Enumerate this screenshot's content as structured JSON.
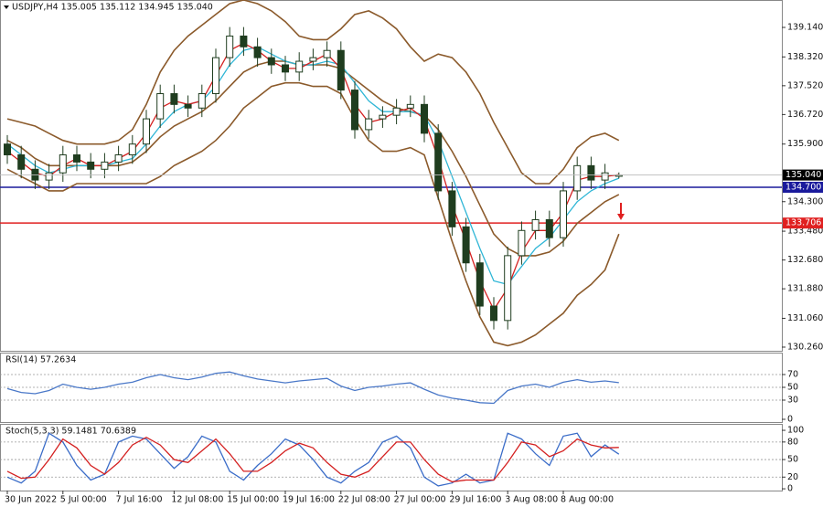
{
  "chart_data": [
    {
      "type": "candlestick",
      "title": "USDJPY,H4  135.005 135.112 134.945 135.040",
      "categories": [
        "30 Jun 2022",
        null,
        null,
        null,
        "5 Jul 00:00",
        null,
        null,
        null,
        "7 Jul 16:00",
        null,
        null,
        null,
        "12 Jul 08:00",
        null,
        null,
        null,
        "15 Jul 00:00",
        null,
        null,
        null,
        "19 Jul 16:00",
        null,
        null,
        null,
        "22 Jul 08:00",
        null,
        null,
        null,
        "27 Jul 00:00",
        null,
        null,
        null,
        "29 Jul 16:00",
        null,
        null,
        null,
        "3 Aug 08:00",
        null,
        null,
        null,
        "8 Aug 00:00",
        null,
        null,
        null,
        null
      ],
      "open": [
        135.9,
        135.6,
        135.2,
        134.9,
        135.1,
        135.6,
        135.4,
        135.2,
        135.4,
        135.6,
        135.9,
        136.6,
        137.3,
        137.0,
        136.9,
        137.3,
        138.3,
        138.9,
        138.6,
        138.3,
        138.1,
        137.9,
        138.2,
        138.3,
        138.5,
        137.4,
        136.3,
        136.6,
        136.7,
        136.9,
        137.0,
        136.2,
        134.6,
        133.6,
        132.6,
        131.4,
        131.0,
        132.8,
        133.5,
        133.8,
        133.3,
        134.6,
        135.3,
        134.9,
        135.005
      ],
      "high": [
        136.15,
        135.85,
        135.45,
        135.35,
        135.85,
        135.85,
        135.65,
        135.65,
        135.85,
        136.15,
        136.85,
        137.55,
        137.55,
        137.25,
        137.55,
        138.55,
        139.15,
        139.15,
        138.85,
        138.55,
        138.35,
        138.45,
        138.55,
        138.75,
        138.75,
        137.65,
        136.85,
        136.95,
        137.15,
        137.25,
        137.25,
        136.45,
        134.85,
        133.85,
        132.85,
        131.65,
        133.05,
        133.75,
        134.05,
        134.05,
        134.85,
        135.55,
        135.55,
        135.35,
        135.112
      ],
      "low": [
        135.35,
        134.95,
        134.65,
        134.65,
        134.85,
        135.15,
        134.95,
        134.95,
        135.15,
        135.35,
        135.65,
        136.35,
        136.75,
        136.65,
        136.65,
        137.05,
        138.05,
        138.35,
        138.05,
        137.85,
        137.65,
        137.65,
        137.95,
        138.05,
        137.15,
        136.05,
        136.05,
        136.35,
        136.45,
        136.65,
        135.95,
        134.35,
        133.35,
        132.35,
        131.15,
        130.75,
        130.75,
        132.55,
        133.25,
        133.05,
        133.05,
        134.35,
        134.65,
        134.65,
        134.945
      ],
      "close": [
        135.6,
        135.2,
        134.9,
        135.1,
        135.6,
        135.4,
        135.2,
        135.4,
        135.6,
        135.9,
        136.6,
        137.3,
        137.0,
        136.9,
        137.3,
        138.3,
        138.9,
        138.6,
        138.3,
        138.1,
        137.9,
        138.2,
        138.3,
        138.5,
        137.4,
        136.3,
        136.6,
        136.7,
        136.9,
        137.0,
        136.2,
        134.6,
        133.6,
        132.6,
        131.4,
        131.0,
        132.8,
        133.5,
        133.8,
        133.3,
        134.6,
        135.3,
        134.9,
        135.1,
        135.04
      ],
      "up_color": "#ffffff",
      "down_color": "#1f3d1f",
      "candle_stroke": "#1f3d1f",
      "series": [
        {
          "color": "#8b5a2b",
          "values": [
            136.6,
            136.5,
            136.4,
            136.2,
            136.0,
            135.9,
            135.9,
            135.9,
            136.0,
            136.3,
            137.0,
            137.9,
            138.5,
            138.9,
            139.2,
            139.5,
            139.8,
            139.9,
            139.8,
            139.6,
            139.3,
            138.9,
            138.8,
            138.8,
            139.1,
            139.5,
            139.6,
            139.4,
            139.1,
            138.6,
            138.2,
            138.4,
            138.3,
            137.9,
            137.3,
            136.5,
            135.8,
            135.1,
            134.8,
            134.8,
            135.2,
            135.8,
            136.1,
            136.2,
            136.0
          ]
        },
        {
          "color": "#8b5a2b",
          "values": [
            136.0,
            135.8,
            135.5,
            135.3,
            135.3,
            135.3,
            135.3,
            135.3,
            135.3,
            135.4,
            135.7,
            136.1,
            136.4,
            136.6,
            136.8,
            137.1,
            137.5,
            137.9,
            138.1,
            138.2,
            138.2,
            138.1,
            138.1,
            138.1,
            138.0,
            137.7,
            137.4,
            137.1,
            136.9,
            136.8,
            136.7,
            136.3,
            135.7,
            135.0,
            134.2,
            133.4,
            133.0,
            132.8,
            132.8,
            132.9,
            133.2,
            133.7,
            134.0,
            134.3,
            134.5
          ]
        },
        {
          "color": "#8b5a2b",
          "values": [
            135.2,
            135.0,
            134.8,
            134.6,
            134.6,
            134.8,
            134.8,
            134.8,
            134.8,
            134.8,
            134.8,
            135.0,
            135.3,
            135.5,
            135.7,
            136.0,
            136.4,
            136.9,
            137.2,
            137.5,
            137.6,
            137.6,
            137.5,
            137.5,
            137.3,
            136.6,
            136.0,
            135.7,
            135.7,
            135.8,
            135.6,
            134.4,
            133.2,
            132.1,
            131.1,
            130.4,
            130.3,
            130.4,
            130.6,
            130.9,
            131.2,
            131.7,
            132.0,
            132.4,
            133.4
          ]
        },
        {
          "color": "#2fb6d6",
          "values": [
            135.9,
            135.6,
            135.3,
            135.1,
            135.2,
            135.3,
            135.3,
            135.3,
            135.4,
            135.5,
            135.9,
            136.4,
            136.8,
            137.0,
            137.1,
            137.5,
            138.1,
            138.5,
            138.6,
            138.4,
            138.2,
            138.1,
            138.1,
            138.2,
            138.1,
            137.6,
            137.1,
            136.8,
            136.8,
            136.8,
            136.7,
            136.0,
            135.0,
            134.0,
            133.0,
            132.1,
            132.0,
            132.5,
            133.0,
            133.3,
            133.8,
            134.3,
            134.6,
            134.8,
            134.95
          ]
        },
        {
          "color": "#d42020",
          "values": [
            135.7,
            135.4,
            135.1,
            135.0,
            135.3,
            135.5,
            135.3,
            135.3,
            135.5,
            135.7,
            136.2,
            136.9,
            137.1,
            137.0,
            137.1,
            137.8,
            138.5,
            138.7,
            138.5,
            138.2,
            138.0,
            138.0,
            138.2,
            138.4,
            138.0,
            137.0,
            136.5,
            136.6,
            136.8,
            136.9,
            136.6,
            135.5,
            134.2,
            133.2,
            132.1,
            131.3,
            131.9,
            132.9,
            133.5,
            133.5,
            134.0,
            134.9,
            135.0,
            135.0,
            135.05
          ]
        }
      ],
      "hlines": [
        {
          "value": 134.7,
          "label": "134.700",
          "color": "#1a1a9c"
        },
        {
          "value": 133.706,
          "label": "133.706",
          "color": "#e02020"
        }
      ],
      "price_marker": {
        "value": 135.04,
        "label": "135.040"
      },
      "ylim": [
        130.158,
        139.901
      ],
      "yticks": [
        {
          "value": 139.14,
          "label": "139.140"
        },
        {
          "value": 138.32,
          "label": "138.320"
        },
        {
          "value": 137.52,
          "label": "137.520"
        },
        {
          "value": 136.72,
          "label": "136.720"
        },
        {
          "value": 135.9,
          "label": "135.900"
        },
        {
          "value": 134.3,
          "label": "134.300"
        },
        {
          "value": 133.48,
          "label": "133.480"
        },
        {
          "value": 132.68,
          "label": "132.680"
        },
        {
          "value": 131.88,
          "label": "131.880"
        },
        {
          "value": 131.06,
          "label": "131.060"
        },
        {
          "value": 130.26,
          "label": "130.260"
        }
      ],
      "grid": false
    },
    {
      "type": "line",
      "title": "RSI(14) 57.2634",
      "series": [
        {
          "color": "#4a78c8",
          "values": [
            48,
            42,
            40,
            45,
            55,
            50,
            47,
            50,
            55,
            58,
            65,
            70,
            65,
            62,
            66,
            72,
            74,
            68,
            63,
            60,
            57,
            60,
            62,
            64,
            52,
            45,
            50,
            52,
            55,
            57,
            47,
            38,
            33,
            30,
            26,
            25,
            45,
            52,
            55,
            50,
            58,
            62,
            58,
            60,
            57.26
          ]
        }
      ],
      "ylim": [
        -4.3,
        104.3
      ],
      "yticks": [
        70,
        50,
        30,
        0
      ],
      "grid": true
    },
    {
      "type": "line",
      "title": "Stoch(5,3,3) 59.1481 70.6389",
      "series": [
        {
          "color": "#3a6cc8",
          "values": [
            20,
            10,
            30,
            95,
            80,
            40,
            15,
            25,
            80,
            90,
            85,
            60,
            35,
            55,
            90,
            80,
            30,
            15,
            40,
            60,
            85,
            75,
            50,
            20,
            10,
            30,
            45,
            80,
            90,
            70,
            20,
            5,
            10,
            25,
            10,
            15,
            95,
            85,
            60,
            40,
            90,
            95,
            55,
            75,
            59.15
          ]
        },
        {
          "color": "#d42020",
          "values": [
            30,
            18,
            20,
            50,
            85,
            70,
            40,
            25,
            45,
            75,
            88,
            75,
            50,
            45,
            65,
            85,
            60,
            30,
            30,
            45,
            65,
            78,
            70,
            45,
            25,
            20,
            30,
            55,
            80,
            80,
            50,
            25,
            12,
            15,
            15,
            15,
            45,
            80,
            75,
            55,
            65,
            85,
            75,
            70,
            70.64
          ]
        }
      ],
      "ylim": [
        -3,
        111
      ],
      "yticks": [
        100,
        80,
        50,
        20,
        0
      ],
      "grid": true
    }
  ]
}
